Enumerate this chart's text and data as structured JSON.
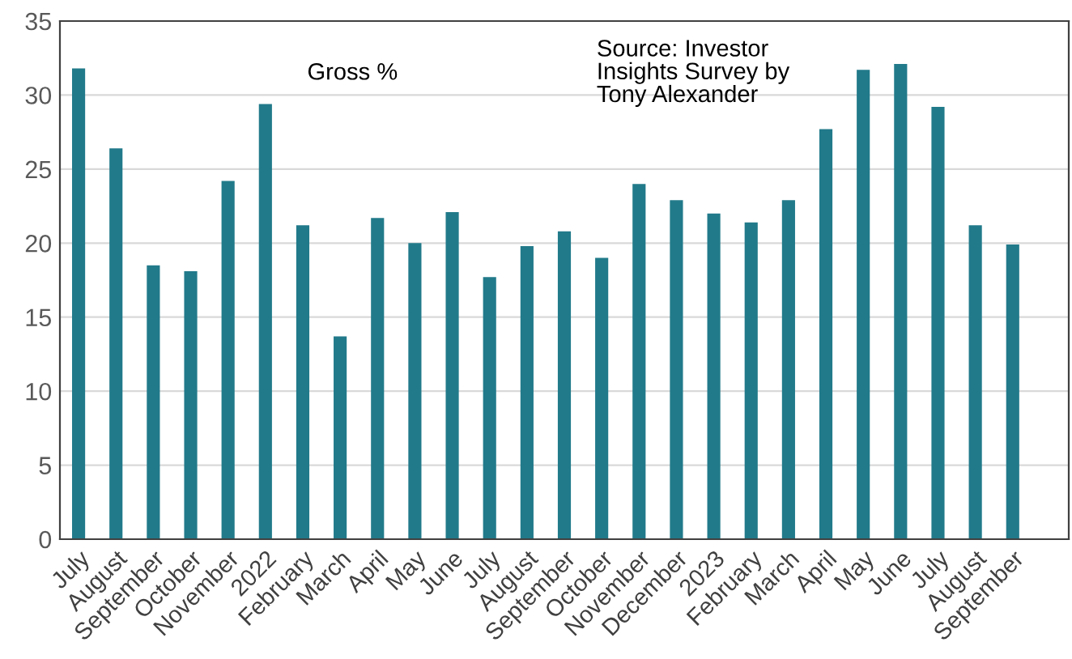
{
  "chart_data": {
    "type": "bar",
    "categories": [
      "July",
      "August",
      "September",
      "October",
      "November",
      "2022",
      "February",
      "March",
      "April",
      "May",
      "June",
      "July",
      "August",
      "September",
      "October",
      "November",
      "December",
      "2023",
      "February",
      "March",
      "April",
      "May",
      "June",
      "July",
      "August",
      "September",
      null
    ],
    "series": [
      {
        "color": "#217a8a",
        "values": [
          31.8,
          26.4,
          18.5,
          18.1,
          24.2,
          29.4,
          21.2,
          13.7,
          21.7,
          20.0,
          22.1,
          17.7,
          19.8,
          20.8,
          19.0,
          24.0,
          22.9,
          22.0,
          21.4,
          22.9,
          27.7,
          31.7,
          32.1,
          29.2,
          21.2,
          19.9,
          null
        ]
      }
    ],
    "ylim": [
      0,
      35
    ],
    "yticks": [
      0,
      5,
      10,
      15,
      20,
      25,
      30,
      35
    ],
    "grid": "y",
    "annotations": [
      "Gross %",
      "Source: Investor\nInsights Survey by\nTony Alexander"
    ]
  }
}
